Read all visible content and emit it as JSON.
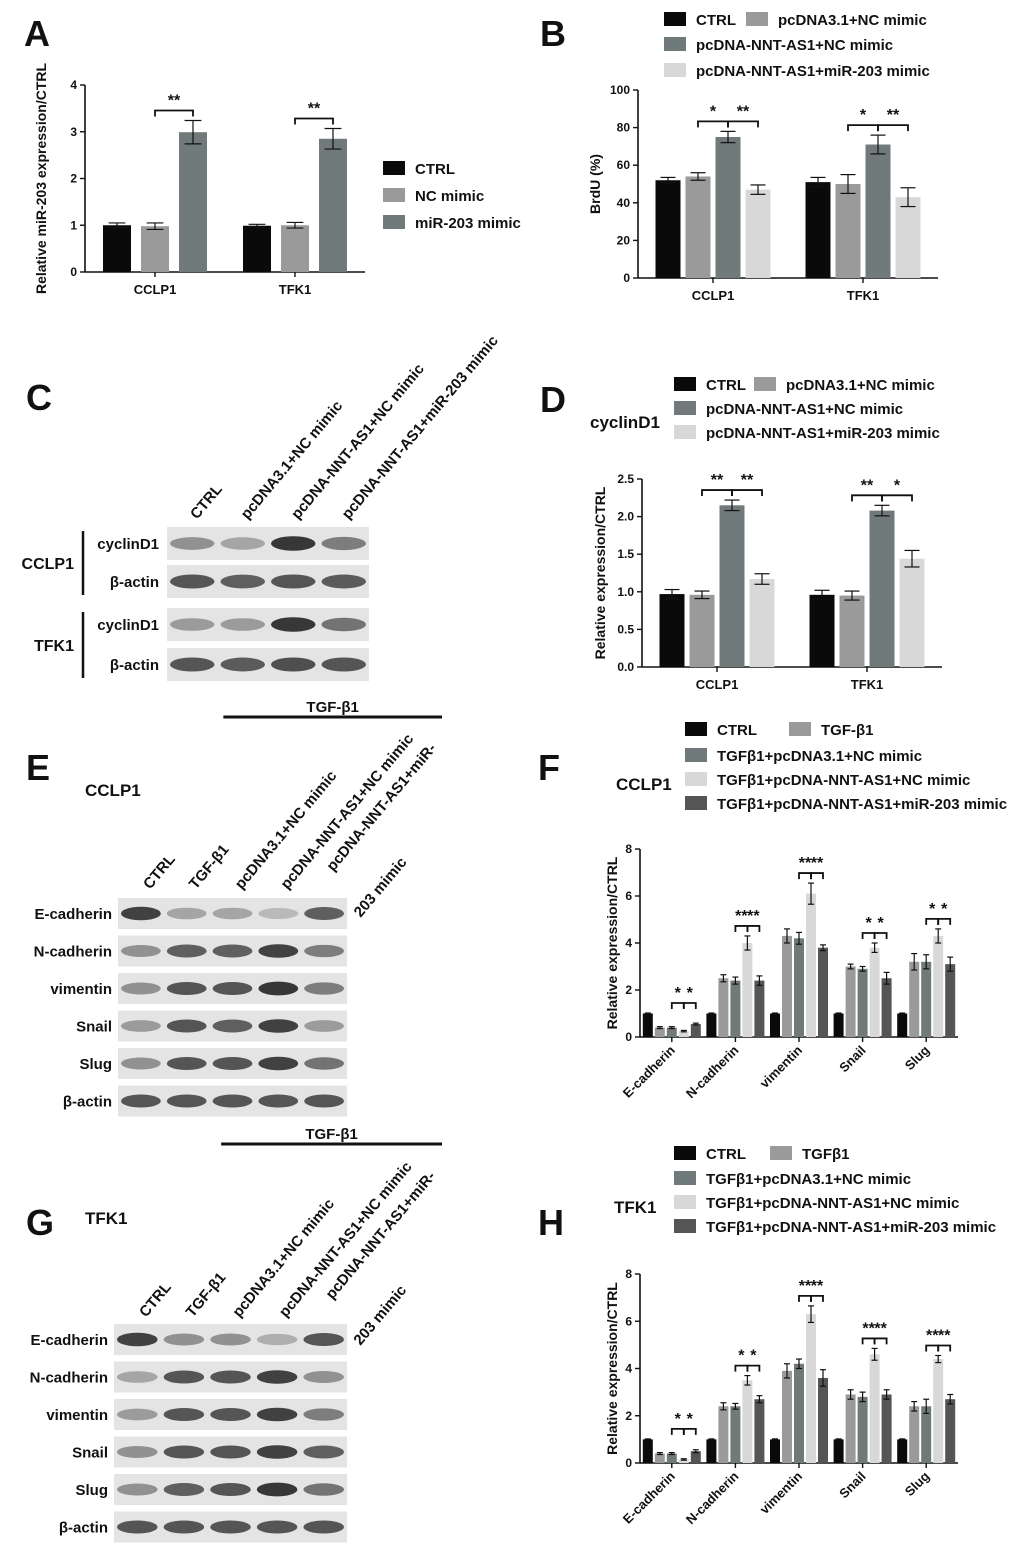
{
  "panels": {
    "A": "A",
    "B": "B",
    "C": "C",
    "D": "D",
    "E": "E",
    "F": "F",
    "G": "G",
    "H": "H"
  },
  "colors": {
    "black": "#0a0a0a",
    "gray": "#9a9a9a",
    "dark": "#707a7a",
    "light": "#d8d8d8",
    "darker": "#555555"
  },
  "chart_data": [
    {
      "id": "A",
      "type": "bar",
      "categories": [
        "CCLP1",
        "TFK1"
      ],
      "ylabel": "Relative miR-203 expression/CTRL",
      "ylim": [
        0,
        4
      ],
      "yticks": [
        0,
        1,
        2,
        3,
        4
      ],
      "series": [
        {
          "name": "CTRL",
          "color": "black",
          "values": [
            1.0,
            0.99
          ],
          "err": [
            0.05,
            0.03
          ]
        },
        {
          "name": "NC mimic",
          "color": "gray",
          "values": [
            0.98,
            1.0
          ],
          "err": [
            0.07,
            0.06
          ]
        },
        {
          "name": "miR-203 mimic",
          "color": "dark",
          "values": [
            2.99,
            2.85
          ],
          "err": [
            0.25,
            0.22
          ]
        }
      ],
      "sig": [
        {
          "cat": 0,
          "from": 1,
          "to": 2,
          "text": "**"
        },
        {
          "cat": 1,
          "from": 1,
          "to": 2,
          "text": "**"
        }
      ]
    },
    {
      "id": "B",
      "type": "bar",
      "categories": [
        "CCLP1",
        "TFK1"
      ],
      "ylabel": "BrdU (%)",
      "ylim": [
        0,
        100
      ],
      "yticks": [
        0,
        20,
        40,
        60,
        80,
        100
      ],
      "series": [
        {
          "name": "CTRL",
          "color": "black",
          "values": [
            52,
            51
          ],
          "err": [
            1.5,
            2.5
          ]
        },
        {
          "name": "pcDNA3.1+NC mimic",
          "color": "gray",
          "values": [
            54,
            50
          ],
          "err": [
            2,
            5
          ]
        },
        {
          "name": "pcDNA-NNT-AS1+NC mimic",
          "color": "dark",
          "values": [
            75,
            71
          ],
          "err": [
            3,
            5
          ]
        },
        {
          "name": "pcDNA-NNT-AS1+miR-203 mimic",
          "color": "light",
          "values": [
            47,
            43
          ],
          "err": [
            2.5,
            5
          ]
        }
      ],
      "sig": [
        {
          "cat": 0,
          "from": 1,
          "to": 2,
          "text": "*"
        },
        {
          "cat": 0,
          "from": 2,
          "to": 3,
          "text": "**"
        },
        {
          "cat": 1,
          "from": 1,
          "to": 2,
          "text": "*"
        },
        {
          "cat": 1,
          "from": 2,
          "to": 3,
          "text": "**"
        }
      ]
    },
    {
      "id": "D",
      "type": "bar",
      "subtitle": "cyclinD1",
      "categories": [
        "CCLP1",
        "TFK1"
      ],
      "ylabel": "Relative expression/CTRL",
      "ylim": [
        0,
        2.5
      ],
      "yticks": [
        "0.0",
        "0.5",
        "1.0",
        "1.5",
        "2.0",
        "2.5"
      ],
      "series": [
        {
          "name": "CTRL",
          "color": "black",
          "values": [
            0.97,
            0.96
          ],
          "err": [
            0.06,
            0.06
          ]
        },
        {
          "name": "pcDNA3.1+NC mimic",
          "color": "gray",
          "values": [
            0.96,
            0.95
          ],
          "err": [
            0.05,
            0.06
          ]
        },
        {
          "name": "pcDNA-NNT-AS1+NC mimic",
          "color": "dark",
          "values": [
            2.15,
            2.08
          ],
          "err": [
            0.07,
            0.07
          ]
        },
        {
          "name": "pcDNA-NNT-AS1+miR-203 mimic",
          "color": "light",
          "values": [
            1.17,
            1.44
          ],
          "err": [
            0.07,
            0.11
          ]
        }
      ],
      "sig": [
        {
          "cat": 0,
          "from": 1,
          "to": 2,
          "text": "**"
        },
        {
          "cat": 0,
          "from": 2,
          "to": 3,
          "text": "**"
        },
        {
          "cat": 1,
          "from": 1,
          "to": 2,
          "text": "**"
        },
        {
          "cat": 1,
          "from": 2,
          "to": 3,
          "text": "*"
        }
      ]
    },
    {
      "id": "F",
      "type": "bar",
      "subtitle": "CCLP1",
      "categories": [
        "E-cadherin",
        "N-cadherin",
        "vimentin",
        "Snail",
        "Slug"
      ],
      "ylabel": "Relative expression/CTRL",
      "ylim": [
        0,
        8
      ],
      "yticks": [
        0,
        2,
        4,
        6,
        8
      ],
      "series": [
        {
          "name": "CTRL",
          "color": "black",
          "values": [
            1,
            1,
            1,
            1,
            1
          ],
          "err": [
            0.02,
            0.02,
            0.02,
            0.02,
            0.02
          ]
        },
        {
          "name": "TGF-β1",
          "color": "gray",
          "values": [
            0.4,
            2.5,
            4.3,
            3.0,
            3.2
          ],
          "err": [
            0.04,
            0.15,
            0.3,
            0.1,
            0.35
          ]
        },
        {
          "name": "TGFβ1+pcDNA3.1+NC mimic",
          "color": "dark",
          "values": [
            0.4,
            2.4,
            4.2,
            2.9,
            3.2
          ],
          "err": [
            0.04,
            0.15,
            0.25,
            0.1,
            0.3
          ]
        },
        {
          "name": "TGFβ1+pcDNA-NNT-AS1+NC mimic",
          "color": "light",
          "values": [
            0.25,
            4.0,
            6.1,
            3.8,
            4.3
          ],
          "err": [
            0.03,
            0.3,
            0.45,
            0.2,
            0.3
          ]
        },
        {
          "name": "TGFβ1+pcDNA-NNT-AS1+miR-203 mimic",
          "color": "darker",
          "values": [
            0.55,
            2.4,
            3.8,
            2.5,
            3.1
          ],
          "err": [
            0.04,
            0.2,
            0.12,
            0.25,
            0.3
          ]
        }
      ],
      "sig": [
        {
          "cat": 0,
          "from": 2,
          "to": 3,
          "text": "*"
        },
        {
          "cat": 0,
          "from": 3,
          "to": 4,
          "text": "*"
        },
        {
          "cat": 1,
          "from": 2,
          "to": 3,
          "text": "**"
        },
        {
          "cat": 1,
          "from": 3,
          "to": 4,
          "text": "**"
        },
        {
          "cat": 2,
          "from": 2,
          "to": 3,
          "text": "**"
        },
        {
          "cat": 2,
          "from": 3,
          "to": 4,
          "text": "**"
        },
        {
          "cat": 3,
          "from": 2,
          "to": 3,
          "text": "*"
        },
        {
          "cat": 3,
          "from": 3,
          "to": 4,
          "text": "*"
        },
        {
          "cat": 4,
          "from": 2,
          "to": 3,
          "text": "*"
        },
        {
          "cat": 4,
          "from": 3,
          "to": 4,
          "text": "*"
        }
      ]
    },
    {
      "id": "H",
      "type": "bar",
      "subtitle": "TFK1",
      "categories": [
        "E-cadherin",
        "N-cadherin",
        "vimentin",
        "Snail",
        "Slug"
      ],
      "ylabel": "Relative expression/CTRL",
      "ylim": [
        0,
        8
      ],
      "yticks": [
        0,
        2,
        4,
        6,
        8
      ],
      "series": [
        {
          "name": "CTRL",
          "color": "black",
          "values": [
            1,
            1,
            1,
            1,
            1
          ],
          "err": [
            0.02,
            0.02,
            0.02,
            0.02,
            0.02
          ]
        },
        {
          "name": "TGFβ1",
          "color": "gray",
          "values": [
            0.4,
            2.4,
            3.9,
            2.9,
            2.4
          ],
          "err": [
            0.04,
            0.15,
            0.3,
            0.2,
            0.2
          ]
        },
        {
          "name": "TGFβ1+pcDNA3.1+NC mimic",
          "color": "dark",
          "values": [
            0.4,
            2.4,
            4.2,
            2.8,
            2.4
          ],
          "err": [
            0.04,
            0.12,
            0.2,
            0.2,
            0.3
          ]
        },
        {
          "name": "TGFβ1+pcDNA-NNT-AS1+NC mimic",
          "color": "light",
          "values": [
            0.15,
            3.5,
            6.3,
            4.6,
            4.4
          ],
          "err": [
            0.03,
            0.2,
            0.35,
            0.25,
            0.15
          ]
        },
        {
          "name": "TGFβ1+pcDNA-NNT-AS1+miR-203 mimic",
          "color": "darker",
          "values": [
            0.5,
            2.7,
            3.6,
            2.9,
            2.7
          ],
          "err": [
            0.06,
            0.15,
            0.35,
            0.2,
            0.2
          ]
        }
      ],
      "sig": [
        {
          "cat": 0,
          "from": 2,
          "to": 3,
          "text": "*"
        },
        {
          "cat": 0,
          "from": 3,
          "to": 4,
          "text": "*"
        },
        {
          "cat": 1,
          "from": 2,
          "to": 3,
          "text": "*"
        },
        {
          "cat": 1,
          "from": 3,
          "to": 4,
          "text": "*"
        },
        {
          "cat": 2,
          "from": 2,
          "to": 3,
          "text": "**"
        },
        {
          "cat": 2,
          "from": 3,
          "to": 4,
          "text": "**"
        },
        {
          "cat": 3,
          "from": 2,
          "to": 3,
          "text": "**"
        },
        {
          "cat": 3,
          "from": 3,
          "to": 4,
          "text": "**"
        },
        {
          "cat": 4,
          "from": 2,
          "to": 3,
          "text": "**"
        },
        {
          "cat": 4,
          "from": 3,
          "to": 4,
          "text": "**"
        }
      ]
    }
  ],
  "blots": {
    "C": {
      "lanes": [
        "CTRL",
        "pcDNA3.1+NC mimic",
        "pcDNA-NNT-AS1+NC mimic",
        "pcDNA-NNT-AS1+miR-203 mimic"
      ],
      "groups": [
        {
          "cell": "CCLP1",
          "rows": [
            {
              "label": "cyclinD1",
              "levels": [
                0.45,
                0.35,
                0.9,
                0.55
              ]
            },
            {
              "label": "β-actin",
              "levels": [
                0.75,
                0.7,
                0.75,
                0.72
              ]
            }
          ]
        },
        {
          "cell": "TFK1",
          "rows": [
            {
              "label": "cyclinD1",
              "levels": [
                0.4,
                0.4,
                0.9,
                0.6
              ]
            },
            {
              "label": "β-actin",
              "levels": [
                0.75,
                0.72,
                0.78,
                0.75
              ]
            }
          ]
        }
      ]
    },
    "E": {
      "treatment": "TGF-β1",
      "cell": "CCLP1",
      "lanes": [
        "CTRL",
        "TGF-β1",
        "pcDNA3.1+NC mimic",
        "pcDNA-NNT-AS1+NC mimic",
        "pcDNA-NNT-AS1+miR-",
        "203 mimic"
      ],
      "rows": [
        {
          "label": "E-cadherin",
          "levels": [
            0.85,
            0.35,
            0.35,
            0.25,
            0.7
          ]
        },
        {
          "label": "N-cadherin",
          "levels": [
            0.45,
            0.7,
            0.7,
            0.85,
            0.55
          ]
        },
        {
          "label": "vimentin",
          "levels": [
            0.45,
            0.75,
            0.75,
            0.9,
            0.55
          ]
        },
        {
          "label": "Snail",
          "levels": [
            0.4,
            0.75,
            0.7,
            0.85,
            0.4
          ]
        },
        {
          "label": "Slug",
          "levels": [
            0.45,
            0.75,
            0.75,
            0.85,
            0.6
          ]
        },
        {
          "label": "β-actin",
          "levels": [
            0.75,
            0.75,
            0.75,
            0.75,
            0.75
          ]
        }
      ]
    },
    "G": {
      "treatment": "TGF-β1",
      "cell": "TFK1",
      "lanes": [
        "CTRL",
        "TGF-β1",
        "pcDNA3.1+NC mimic",
        "pcDNA-NNT-AS1+NC mimic",
        "pcDNA-NNT-AS1+miR-",
        "203 mimic"
      ],
      "rows": [
        {
          "label": "E-cadherin",
          "levels": [
            0.85,
            0.45,
            0.45,
            0.3,
            0.75
          ]
        },
        {
          "label": "N-cadherin",
          "levels": [
            0.35,
            0.75,
            0.75,
            0.85,
            0.45
          ]
        },
        {
          "label": "vimentin",
          "levels": [
            0.4,
            0.75,
            0.75,
            0.85,
            0.55
          ]
        },
        {
          "label": "Snail",
          "levels": [
            0.45,
            0.75,
            0.75,
            0.85,
            0.7
          ]
        },
        {
          "label": "Slug",
          "levels": [
            0.45,
            0.7,
            0.75,
            0.9,
            0.6
          ]
        },
        {
          "label": "β-actin",
          "levels": [
            0.75,
            0.75,
            0.75,
            0.75,
            0.75
          ]
        }
      ]
    }
  }
}
